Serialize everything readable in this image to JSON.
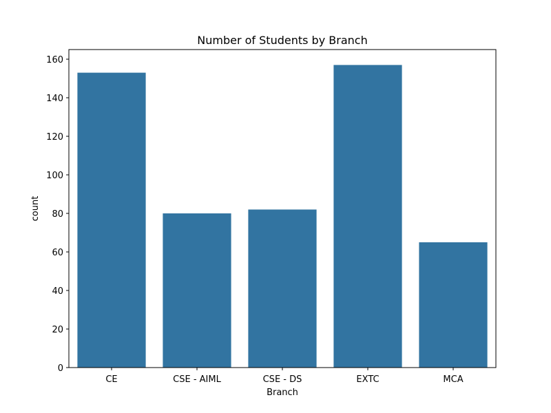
{
  "chart_data": {
    "type": "bar",
    "title": "Number of Students by Branch",
    "xlabel": "Branch",
    "ylabel": "count",
    "categories": [
      "CE",
      "CSE - AIML",
      "CSE - DS",
      "EXTC",
      "MCA"
    ],
    "values": [
      153,
      80,
      82,
      157,
      65
    ],
    "ylim": [
      0,
      165
    ],
    "yticks": [
      0,
      20,
      40,
      60,
      80,
      100,
      120,
      140,
      160
    ],
    "bar_color": "#3274a1",
    "grid": false,
    "legend": "none"
  }
}
